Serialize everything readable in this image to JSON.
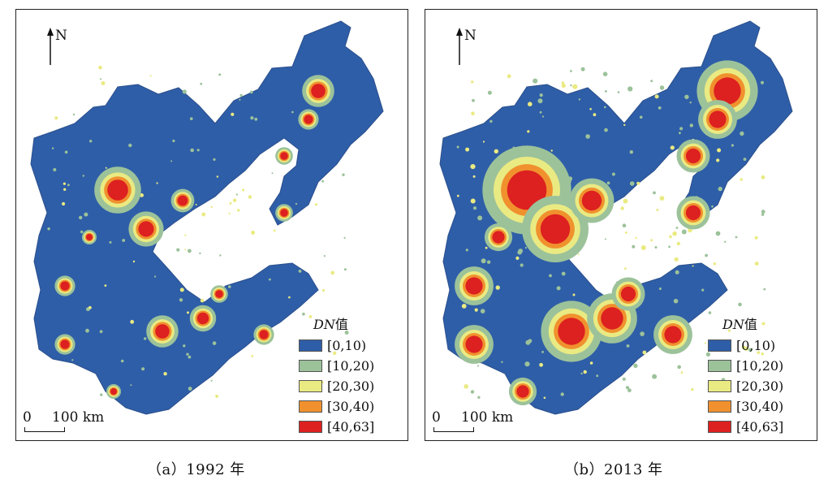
{
  "north_label": "N",
  "scale": {
    "zero": "0",
    "distance": "100 km"
  },
  "legend": {
    "title_italic": "DN",
    "title_suffix": "值",
    "items": [
      {
        "label": "[0,10)",
        "color": "#2f5ea8"
      },
      {
        "label": "[10,20)",
        "color": "#9cc29a"
      },
      {
        "label": "[20,30)",
        "color": "#eaea82"
      },
      {
        "label": "[30,40)",
        "color": "#f0912e"
      },
      {
        "label": "[40,63]",
        "color": "#dd2020"
      }
    ]
  },
  "panels": [
    {
      "caption": "（a）1992 年",
      "year": "1992",
      "intensity": "low"
    },
    {
      "caption": "（b）2013 年",
      "year": "2013",
      "intensity": "high"
    }
  ]
}
